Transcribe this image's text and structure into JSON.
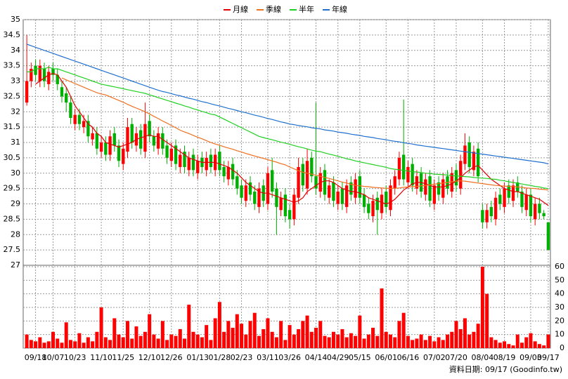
{
  "chart_data": {
    "type": "candlestick",
    "grid": true,
    "legend": "top",
    "categories": [
      null,
      null,
      "09/18",
      null,
      null,
      null,
      "10/07",
      null,
      null,
      null,
      null,
      "10/23",
      null,
      null,
      null,
      null,
      null,
      "11/10",
      null,
      null,
      null,
      null,
      "11/25",
      null,
      null,
      null,
      null,
      null,
      "12/10",
      null,
      null,
      null,
      null,
      "12/26",
      null,
      null,
      null,
      null,
      null,
      "01/13",
      null,
      null,
      null,
      null,
      "01/28",
      null,
      null,
      null,
      null,
      "02/23",
      null,
      null,
      null,
      null,
      null,
      "03/11",
      null,
      null,
      null,
      null,
      "03/26",
      null,
      null,
      null,
      null,
      null,
      "04/14",
      null,
      null,
      null,
      null,
      "04/29",
      null,
      null,
      null,
      null,
      "05/15",
      null,
      null,
      null,
      null,
      null,
      "06/01",
      null,
      null,
      null,
      null,
      "06/16",
      null,
      null,
      null,
      null,
      null,
      "07/02",
      null,
      null,
      null,
      null,
      "07/20",
      null,
      null,
      null,
      null,
      null,
      "08/04",
      null,
      null,
      null,
      null,
      "08/19",
      null,
      null,
      null,
      null,
      null,
      "09/03",
      null,
      null,
      null,
      "09/17"
    ],
    "open": [
      32.3,
      33.0,
      33.5,
      33.0,
      33.4,
      32.9,
      33.4,
      33.2,
      32.8,
      32.6,
      32.3,
      31.6,
      31.9,
      31.5,
      31.7,
      31.1,
      31.3,
      30.7,
      31.0,
      30.6,
      31.3,
      30.9,
      30.3,
      30.7,
      31.6,
      30.9,
      31.4,
      30.7,
      31.7,
      31.2,
      30.8,
      31.3,
      30.9,
      30.4,
      30.9,
      30.2,
      30.7,
      30.1,
      30.6,
      30.0,
      30.5,
      30.1,
      30.6,
      30.1,
      30.7,
      30.2,
      29.8,
      30.3,
      29.9,
      29.6,
      29.1,
      29.7,
      29.4,
      28.9,
      29.6,
      29.0,
      30.1,
      29.5,
      28.8,
      29.3,
      28.8,
      28.5,
      29.2,
      30.3,
      29.5,
      30.5,
      29.9,
      29.4,
      30.1,
      29.2,
      29.7,
      29.0,
      29.5,
      28.9,
      29.7,
      29.2,
      29.9,
      29.3,
      29.0,
      28.6,
      29.2,
      28.7,
      29.4,
      28.8,
      29.5,
      29.8,
      30.6,
      29.7,
      30.3,
      29.5,
      30.0,
      29.3,
      29.9,
      29.0,
      29.7,
      29.2,
      29.9,
      29.4,
      30.1,
      29.5,
      30.3,
      31.0,
      30.1,
      30.8,
      28.8,
      28.4,
      28.9,
      28.5,
      29.3,
      28.9,
      29.6,
      29.1,
      29.7,
      29.4,
      28.8,
      29.3,
      28.5,
      29.0,
      28.7,
      28.4
    ],
    "high": [
      34.5,
      33.6,
      33.7,
      33.7,
      33.6,
      33.5,
      33.6,
      33.4,
      33.0,
      32.8,
      32.5,
      32.1,
      32.1,
      31.9,
      31.9,
      31.5,
      31.5,
      31.2,
      31.2,
      31.4,
      31.5,
      31.1,
      31.0,
      31.8,
      31.8,
      31.5,
      31.6,
      32.3,
      31.9,
      31.4,
      31.5,
      31.5,
      31.1,
      31.0,
      31.1,
      30.8,
      30.9,
      30.7,
      30.8,
      30.6,
      30.7,
      30.7,
      30.8,
      30.8,
      30.9,
      30.4,
      30.4,
      30.5,
      30.1,
      29.8,
      29.8,
      29.9,
      29.6,
      29.7,
      29.8,
      30.2,
      30.5,
      29.7,
      29.4,
      29.5,
      29.0,
      29.5,
      30.5,
      30.5,
      30.8,
      30.7,
      32.3,
      30.2,
      30.3,
      29.8,
      29.9,
      29.6,
      29.7,
      29.8,
      29.9,
      30.0,
      30.1,
      29.5,
      29.2,
      29.3,
      29.4,
      29.5,
      29.6,
      29.8,
      30.1,
      30.7,
      32.4,
      30.4,
      30.5,
      30.1,
      30.2,
      30.0,
      30.1,
      29.8,
      29.9,
      30.0,
      30.1,
      30.2,
      30.3,
      30.6,
      31.3,
      31.2,
      30.9,
      31.0,
      29.0,
      29.0,
      29.1,
      29.4,
      29.5,
      29.7,
      29.8,
      29.8,
      29.9,
      29.6,
      29.5,
      29.5,
      29.2,
      29.2,
      28.8,
      28.4
    ],
    "low": [
      32.2,
      32.8,
      33.0,
      32.8,
      32.8,
      32.7,
      33.0,
      32.7,
      32.3,
      32.0,
      31.6,
      31.4,
      31.4,
      31.3,
      31.0,
      30.9,
      30.6,
      30.5,
      30.4,
      30.4,
      30.7,
      30.2,
      30.1,
      30.5,
      30.8,
      30.7,
      30.6,
      30.5,
      31.0,
      30.7,
      30.6,
      30.6,
      30.3,
      30.2,
      30.1,
      30.0,
      30.0,
      29.9,
      29.9,
      29.8,
      30.0,
      29.9,
      30.0,
      29.9,
      29.9,
      29.7,
      29.6,
      29.6,
      29.3,
      29.0,
      28.9,
      29.1,
      28.8,
      28.7,
      28.9,
      28.8,
      29.2,
      28.0,
      28.6,
      28.4,
      28.2,
      28.3,
      29.0,
      29.4,
      29.3,
      29.7,
      29.3,
      29.2,
      29.1,
      29.0,
      28.9,
      28.8,
      28.8,
      28.7,
      29.1,
      29.0,
      29.0,
      28.7,
      28.5,
      28.4,
      28.0,
      28.5,
      28.7,
      28.6,
      29.3,
      29.6,
      29.6,
      29.5,
      29.4,
      29.3,
      29.2,
      29.1,
      28.9,
      28.8,
      29.1,
      29.0,
      29.3,
      29.2,
      29.4,
      29.3,
      30.1,
      30.0,
      29.9,
      29.7,
      28.2,
      28.2,
      28.4,
      28.3,
      28.8,
      28.7,
      29.0,
      28.9,
      29.2,
      28.7,
      28.6,
      28.4,
      28.3,
      28.5,
      28.5,
      27.5
    ],
    "close": [
      33.0,
      33.4,
      33.2,
      33.5,
      33.0,
      33.3,
      33.2,
      32.9,
      32.5,
      32.3,
      31.8,
      31.9,
      31.6,
      31.7,
      31.2,
      31.3,
      30.8,
      31.0,
      30.6,
      31.2,
      30.9,
      30.4,
      30.8,
      31.5,
      31.0,
      31.3,
      30.8,
      31.6,
      31.2,
      30.9,
      31.3,
      30.8,
      30.5,
      30.8,
      30.3,
      30.6,
      30.2,
      30.5,
      30.1,
      30.4,
      30.2,
      30.5,
      30.2,
      30.6,
      30.1,
      29.9,
      30.2,
      29.8,
      29.5,
      29.2,
      29.6,
      29.3,
      29.0,
      29.5,
      29.1,
      30.0,
      29.4,
      28.9,
      29.2,
      28.6,
      28.5,
      29.3,
      30.2,
      29.6,
      30.4,
      29.9,
      29.5,
      30.0,
      29.3,
      29.6,
      29.1,
      29.4,
      29.0,
      29.6,
      29.3,
      29.8,
      29.2,
      28.9,
      28.7,
      29.1,
      28.8,
      29.3,
      28.9,
      29.6,
      29.9,
      30.5,
      29.8,
      30.2,
      29.6,
      29.9,
      29.4,
      29.8,
      29.1,
      29.6,
      29.3,
      29.8,
      29.5,
      30.0,
      29.6,
      30.4,
      30.9,
      30.2,
      30.7,
      29.9,
      28.4,
      28.8,
      28.6,
      29.2,
      29.0,
      29.5,
      29.2,
      29.6,
      29.4,
      28.9,
      29.3,
      28.6,
      29.0,
      28.7,
      28.6,
      27.5
    ],
    "up_color": "#ff0000",
    "down_color": "#00b000",
    "volume": {
      "color": "#ff0000",
      "axis": "y2",
      "values": [
        10,
        6,
        5,
        8,
        4,
        5,
        12,
        7,
        4,
        19,
        6,
        5,
        11,
        4,
        8,
        5,
        12,
        30,
        8,
        6,
        22,
        10,
        8,
        20,
        7,
        16,
        9,
        12,
        25,
        10,
        7,
        20,
        6,
        10,
        9,
        14,
        7,
        32,
        12,
        10,
        8,
        17,
        6,
        22,
        34,
        12,
        20,
        15,
        25,
        18,
        10,
        20,
        26,
        9,
        14,
        22,
        12,
        8,
        20,
        6,
        17,
        10,
        14,
        20,
        24,
        12,
        15,
        20,
        9,
        8,
        12,
        10,
        14,
        8,
        11,
        9,
        24,
        7,
        10,
        15,
        9,
        44,
        12,
        10,
        8,
        20,
        26,
        9,
        6,
        7,
        10,
        6,
        9,
        5,
        8,
        6,
        10,
        12,
        20,
        14,
        22,
        10,
        12,
        18,
        60,
        40,
        8,
        6,
        4,
        5,
        3,
        2,
        10,
        4,
        8,
        11,
        5,
        3,
        2,
        10
      ]
    },
    "series": [
      {
        "name": "月線",
        "color": "#e00000",
        "values": [
          null,
          null,
          32.9,
          33.0,
          33.1,
          33.2,
          33.25,
          33.2,
          33.0,
          32.8,
          32.5,
          32.2,
          32.0,
          31.8,
          31.6,
          31.5,
          31.3,
          31.2,
          31.0,
          30.95,
          30.9,
          30.85,
          30.9,
          30.95,
          31.0,
          31.1,
          31.15,
          31.2,
          31.25,
          31.2,
          31.2,
          31.1,
          31.0,
          30.9,
          30.8,
          30.7,
          30.6,
          30.5,
          30.45,
          30.4,
          30.35,
          30.35,
          30.35,
          30.35,
          30.3,
          30.25,
          30.2,
          30.1,
          30.0,
          29.85,
          29.7,
          29.6,
          29.5,
          29.4,
          29.35,
          29.35,
          29.3,
          29.25,
          29.2,
          29.15,
          29.1,
          29.05,
          29.1,
          29.2,
          29.4,
          29.5,
          29.6,
          29.7,
          29.75,
          29.75,
          29.7,
          29.6,
          29.5,
          29.45,
          29.4,
          29.4,
          29.35,
          29.3,
          29.2,
          29.15,
          29.1,
          29.05,
          29.0,
          29.05,
          29.15,
          29.3,
          29.45,
          29.55,
          29.65,
          29.7,
          29.7,
          29.65,
          29.6,
          29.55,
          29.55,
          29.55,
          29.6,
          29.65,
          29.75,
          29.85,
          30.0,
          30.1,
          30.2,
          30.25,
          30.1,
          29.95,
          29.8,
          29.7,
          29.6,
          29.5,
          29.45,
          29.4,
          29.4,
          29.35,
          29.3,
          29.25,
          29.2,
          29.15,
          29.05,
          28.95
        ]
      },
      {
        "name": "季線",
        "color": "#f07020",
        "values": [
          null,
          null,
          null,
          null,
          null,
          null,
          null,
          null,
          33.1,
          33.04,
          32.98,
          32.92,
          32.86,
          32.8,
          32.74,
          32.68,
          32.62,
          32.58,
          32.55,
          32.49,
          32.43,
          32.37,
          32.31,
          32.24,
          32.18,
          32.12,
          32.06,
          32.0,
          31.93,
          31.85,
          31.78,
          31.7,
          31.63,
          31.55,
          31.48,
          31.4,
          31.34,
          31.29,
          31.23,
          31.17,
          31.12,
          31.06,
          31.0,
          30.95,
          30.91,
          30.86,
          30.82,
          30.78,
          30.73,
          30.69,
          30.64,
          30.6,
          30.56,
          30.52,
          30.48,
          30.44,
          30.4,
          30.36,
          30.31,
          30.27,
          30.2,
          30.14,
          30.08,
          30.03,
          30.0,
          29.97,
          29.93,
          29.9,
          29.86,
          29.83,
          29.79,
          29.75,
          29.71,
          29.68,
          29.64,
          29.6,
          29.59,
          29.57,
          29.56,
          29.54,
          29.53,
          29.52,
          29.51,
          29.5,
          29.51,
          29.52,
          29.54,
          29.55,
          29.56,
          29.57,
          29.59,
          29.6,
          29.62,
          29.64,
          29.66,
          29.68,
          29.7,
          29.72,
          29.74,
          29.75,
          29.74,
          29.72,
          29.7,
          29.68,
          29.66,
          29.64,
          29.62,
          29.6,
          29.59,
          29.58,
          29.57,
          29.56,
          29.55,
          29.54,
          29.52,
          29.51,
          29.5,
          29.48,
          29.47,
          29.45
        ]
      },
      {
        "name": "半年",
        "color": "#20d020",
        "values": [
          33.3,
          33.3,
          33.4,
          33.4,
          33.4,
          33.45,
          33.4,
          33.4,
          33.35,
          33.3,
          33.25,
          33.2,
          33.15,
          33.1,
          33.05,
          33.0,
          32.95,
          32.9,
          32.87,
          32.84,
          32.81,
          32.78,
          32.75,
          32.72,
          32.69,
          32.66,
          32.63,
          32.6,
          32.55,
          32.51,
          32.46,
          32.42,
          32.37,
          32.33,
          32.28,
          32.24,
          32.19,
          32.15,
          32.1,
          32.06,
          32.01,
          31.97,
          31.92,
          31.9,
          31.83,
          31.76,
          31.69,
          31.62,
          31.55,
          31.48,
          31.41,
          31.34,
          31.27,
          31.2,
          31.16,
          31.12,
          31.09,
          31.05,
          31.01,
          30.98,
          30.94,
          30.9,
          30.86,
          30.83,
          30.79,
          30.75,
          30.72,
          30.7,
          30.66,
          30.62,
          30.59,
          30.55,
          30.51,
          30.47,
          30.44,
          30.4,
          30.37,
          30.34,
          30.31,
          30.28,
          30.25,
          30.22,
          30.19,
          30.15,
          30.13,
          30.11,
          30.09,
          30.07,
          30.05,
          30.04,
          30.02,
          30.0,
          29.99,
          29.97,
          29.96,
          29.95,
          29.94,
          29.92,
          29.91,
          29.9,
          29.89,
          29.88,
          29.86,
          29.85,
          29.84,
          29.83,
          29.81,
          29.8,
          29.77,
          29.75,
          29.72,
          29.7,
          29.67,
          29.65,
          29.62,
          29.6,
          29.57,
          29.55,
          29.52,
          29.5
        ]
      },
      {
        "name": "年線",
        "color": "#2070d0",
        "values": [
          34.2,
          34.15,
          34.1,
          34.05,
          34.0,
          33.95,
          33.9,
          33.85,
          33.8,
          33.75,
          33.7,
          33.65,
          33.6,
          33.55,
          33.5,
          33.45,
          33.4,
          33.35,
          33.3,
          33.25,
          33.2,
          33.15,
          33.1,
          33.05,
          33.0,
          32.95,
          32.9,
          32.85,
          32.8,
          32.75,
          32.7,
          32.66,
          32.63,
          32.59,
          32.55,
          32.52,
          32.48,
          32.44,
          32.41,
          32.37,
          32.33,
          32.3,
          32.26,
          32.22,
          32.19,
          32.15,
          32.11,
          32.08,
          32.04,
          32.0,
          31.97,
          31.93,
          31.89,
          31.86,
          31.82,
          31.78,
          31.75,
          31.71,
          31.67,
          31.64,
          31.6,
          31.58,
          31.55,
          31.53,
          31.51,
          31.48,
          31.46,
          31.44,
          31.41,
          31.39,
          31.37,
          31.34,
          31.32,
          31.3,
          31.27,
          31.25,
          31.23,
          31.2,
          31.18,
          31.16,
          31.13,
          31.11,
          31.09,
          31.06,
          31.04,
          31.02,
          30.99,
          30.97,
          30.95,
          30.92,
          30.9,
          30.88,
          30.86,
          30.84,
          30.82,
          30.8,
          30.78,
          30.76,
          30.74,
          30.72,
          30.7,
          30.68,
          30.66,
          30.64,
          30.62,
          30.6,
          30.58,
          30.56,
          30.54,
          30.52,
          30.5,
          30.48,
          30.46,
          30.44,
          30.42,
          30.4,
          30.38,
          30.36,
          30.34,
          30.3
        ]
      }
    ],
    "ylim": [
      27,
      35
    ],
    "yticks": [
      27,
      27.5,
      28,
      28.5,
      29,
      29.5,
      30,
      30.5,
      31,
      31.5,
      32,
      32.5,
      33,
      33.5,
      34,
      34.5,
      35
    ],
    "y2lim": [
      0,
      60
    ],
    "y2ticks": [
      0,
      10,
      20,
      30,
      40,
      50,
      60
    ]
  },
  "footer": "資料日期: 09/17   (Goodinfo.tw)"
}
